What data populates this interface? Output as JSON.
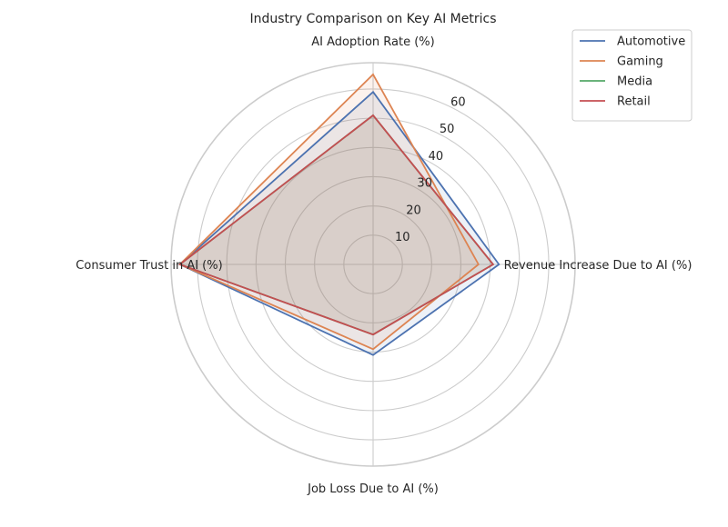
{
  "chart_data": {
    "type": "radar",
    "title": "Industry Comparison on Key AI Metrics",
    "axes": [
      "AI Adoption Rate (%)",
      "Revenue Increase Due to AI (%)",
      "Job Loss Due to AI (%)",
      "Consumer Trust in AI (%)"
    ],
    "rlim": [
      0,
      69
    ],
    "rticks": [
      10,
      20,
      30,
      40,
      50,
      60
    ],
    "grid": true,
    "legend_position": "top-right",
    "series": [
      {
        "name": "Automotive",
        "color": "#4c72b0",
        "values": [
          59,
          43,
          31,
          66
        ]
      },
      {
        "name": "Gaming",
        "color": "#dd8452",
        "values": [
          65,
          36,
          29,
          66
        ]
      },
      {
        "name": "Media",
        "color": "#55a868",
        "values": [
          51,
          41,
          24,
          66
        ]
      },
      {
        "name": "Retail",
        "color": "#c44e52",
        "values": [
          51,
          41,
          24,
          66
        ]
      }
    ]
  }
}
